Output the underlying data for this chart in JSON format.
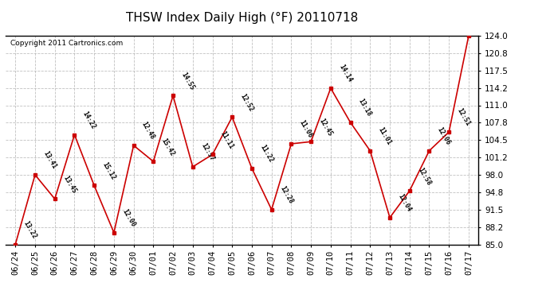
{
  "title": "THSW Index Daily High (°F) 20110718",
  "copyright": "Copyright 2011 Cartronics.com",
  "background_color": "#ffffff",
  "plot_bg_color": "#ffffff",
  "grid_color": "#b0b0b0",
  "line_color": "#cc0000",
  "marker_color": "#cc0000",
  "xlabels": [
    "06/24",
    "06/25",
    "06/26",
    "06/27",
    "06/28",
    "06/29",
    "06/30",
    "07/01",
    "07/02",
    "07/03",
    "07/04",
    "07/05",
    "07/06",
    "07/07",
    "07/08",
    "07/09",
    "07/10",
    "07/11",
    "07/12",
    "07/13",
    "07/14",
    "07/15",
    "07/16",
    "07/17"
  ],
  "yvalues": [
    85.0,
    98.0,
    93.5,
    105.5,
    96.0,
    87.2,
    103.5,
    100.5,
    112.8,
    99.5,
    101.8,
    108.8,
    99.2,
    91.5,
    103.8,
    104.2,
    114.2,
    107.8,
    102.5,
    90.0,
    95.0,
    102.5,
    106.0,
    124.0
  ],
  "point_labels": [
    "13:22",
    "13:41",
    "13:45",
    "14:22",
    "15:12",
    "12:00",
    "12:48",
    "15:42",
    "14:55",
    "12:57",
    "11:11",
    "12:52",
    "11:22",
    "12:28",
    "11:06",
    "12:45",
    "14:14",
    "13:18",
    "11:01",
    "12:04",
    "12:58",
    "12:06",
    "12:51",
    ""
  ],
  "ylim": [
    85.0,
    124.0
  ],
  "yticks": [
    85.0,
    88.2,
    91.5,
    94.8,
    98.0,
    101.2,
    104.5,
    107.8,
    111.0,
    114.2,
    117.5,
    120.8,
    124.0
  ],
  "title_fontsize": 11,
  "tick_fontsize": 7.5,
  "label_fontsize": 6.0
}
